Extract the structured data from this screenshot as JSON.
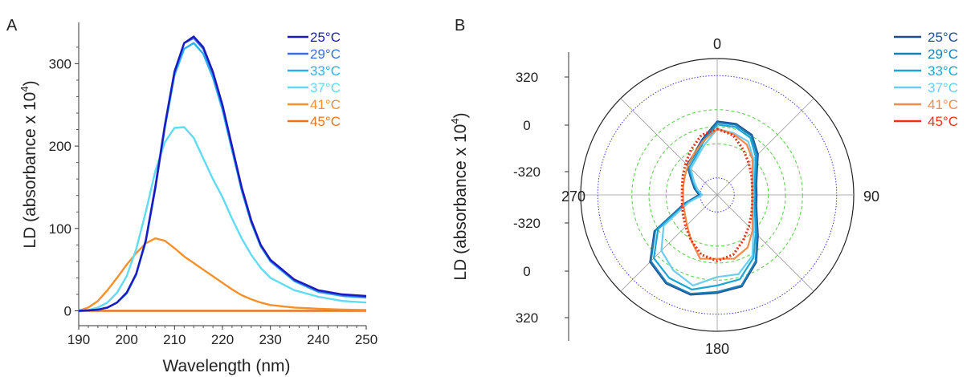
{
  "chart_data": [
    {
      "panel": "A",
      "type": "line",
      "xlabel": "Wavelength (nm)",
      "ylabel": "LD (absorbance x 10",
      "ylabel_sup": "4",
      "ylabel_close": ")",
      "xlim": [
        190,
        250
      ],
      "ylim": [
        -18,
        350
      ],
      "xticks": [
        190,
        200,
        210,
        220,
        230,
        240,
        250
      ],
      "yticks": [
        0,
        100,
        200,
        300
      ],
      "grid": false,
      "legend": "top-right",
      "x": [
        190,
        192,
        194,
        196,
        198,
        200,
        202,
        204,
        206,
        208,
        210,
        212,
        214,
        216,
        218,
        220,
        222,
        224,
        226,
        228,
        230,
        235,
        240,
        245,
        250
      ],
      "series": [
        {
          "name": "25°C",
          "color": "#1a1abf",
          "values": [
            0,
            0.5,
            1.5,
            4,
            10,
            22,
            45,
            85,
            150,
            225,
            290,
            325,
            333,
            320,
            290,
            250,
            200,
            150,
            110,
            80,
            62,
            38,
            25,
            20,
            18
          ]
        },
        {
          "name": "29°C",
          "color": "#3a6fe0",
          "values": [
            0,
            0.5,
            1.5,
            4,
            10,
            22,
            45,
            86,
            152,
            227,
            291,
            325,
            331,
            318,
            288,
            248,
            198,
            148,
            108,
            79,
            61,
            37,
            24,
            19,
            17
          ]
        },
        {
          "name": "33°C",
          "color": "#2ab0ee",
          "values": [
            0,
            0.5,
            1.5,
            4,
            10,
            21,
            44,
            84,
            149,
            223,
            286,
            318,
            325,
            312,
            283,
            244,
            195,
            146,
            107,
            78,
            60,
            36,
            23,
            18,
            16
          ]
        },
        {
          "name": "37°C",
          "color": "#5fdcf2",
          "values": [
            0,
            1,
            4,
            10,
            22,
            42,
            75,
            120,
            170,
            205,
            222,
            223,
            210,
            185,
            160,
            138,
            112,
            88,
            68,
            52,
            40,
            25,
            17,
            12,
            10
          ]
        },
        {
          "name": "41°C",
          "color": "#f5902a",
          "values": [
            0,
            4,
            12,
            25,
            40,
            56,
            70,
            82,
            88,
            85,
            76,
            66,
            58,
            50,
            42,
            34,
            26,
            19,
            14,
            10,
            7,
            4,
            2.5,
            1.5,
            1
          ]
        },
        {
          "name": "45°C",
          "color": "#e8741e",
          "values": [
            0,
            0,
            0,
            0,
            0,
            0,
            0,
            0,
            0,
            0,
            0,
            0,
            0,
            0,
            0,
            0,
            0,
            0,
            0,
            0,
            0,
            0,
            0,
            0,
            0
          ]
        }
      ]
    },
    {
      "panel": "B",
      "type": "polar",
      "ylabel": "LD (absorbance x 10",
      "ylabel_sup": "4",
      "ylabel_close": ")",
      "angle_labels": [
        "0",
        "90",
        "180",
        "270"
      ],
      "radial_tick_labels": [
        "320",
        "0",
        "-320",
        "-320",
        "0",
        "320"
      ],
      "rlim": [
        -640,
        640
      ],
      "legend": "top-right",
      "angles": [
        0,
        15,
        30,
        45,
        60,
        75,
        90,
        105,
        120,
        135,
        150,
        165,
        180,
        195,
        210,
        225,
        240,
        255,
        270,
        285,
        300,
        315,
        330,
        345
      ],
      "series": [
        {
          "name": "25°C",
          "color": "#1f4d8f",
          "values": [
            50,
            50,
            10,
            -100,
            -210,
            -260,
            -270,
            -260,
            -210,
            -100,
            90,
            250,
            280,
            330,
            320,
            250,
            40,
            -320,
            -470,
            -420,
            -360,
            -240,
            -200,
            -100
          ]
        },
        {
          "name": "29°C",
          "color": "#1b7fb8",
          "values": [
            40,
            40,
            0,
            -110,
            -220,
            -270,
            -280,
            -270,
            -220,
            -110,
            80,
            240,
            270,
            320,
            310,
            240,
            30,
            -330,
            -480,
            -430,
            -370,
            -250,
            -210,
            -110
          ]
        },
        {
          "name": "33°C",
          "color": "#1aa6d6",
          "values": [
            20,
            20,
            -20,
            -130,
            -230,
            -280,
            -290,
            -280,
            -230,
            -130,
            40,
            180,
            210,
            280,
            260,
            200,
            0,
            -350,
            -490,
            -440,
            -380,
            -270,
            -230,
            -130
          ]
        },
        {
          "name": "37°C",
          "color": "#6ccdf0",
          "values": [
            -20,
            -40,
            -60,
            -160,
            -250,
            -290,
            -300,
            -290,
            -250,
            -160,
            20,
            130,
            130,
            240,
            180,
            100,
            -60,
            -360,
            -500,
            -450,
            -390,
            -290,
            -250,
            -160
          ]
        },
        {
          "name": "41°C",
          "color": "#f58b4a",
          "values": [
            -20,
            -50,
            -90,
            -170,
            -260,
            -300,
            -310,
            -300,
            -260,
            -170,
            -70,
            -20,
            -40,
            -20,
            -150,
            -240,
            -290,
            -310,
            -320,
            -310,
            -290,
            -250,
            -200,
            -120
          ]
        },
        {
          "name": "45°C",
          "color": "#e8331a",
          "dotted": true,
          "values": [
            -20,
            -60,
            -150,
            -220,
            -270,
            -300,
            -310,
            -300,
            -270,
            -220,
            -150,
            -60,
            -20,
            -60,
            -150,
            -220,
            -270,
            -300,
            -310,
            -300,
            -270,
            -220,
            -150,
            -60
          ]
        }
      ]
    }
  ],
  "panels": {
    "a_label": "A",
    "b_label": "B"
  }
}
